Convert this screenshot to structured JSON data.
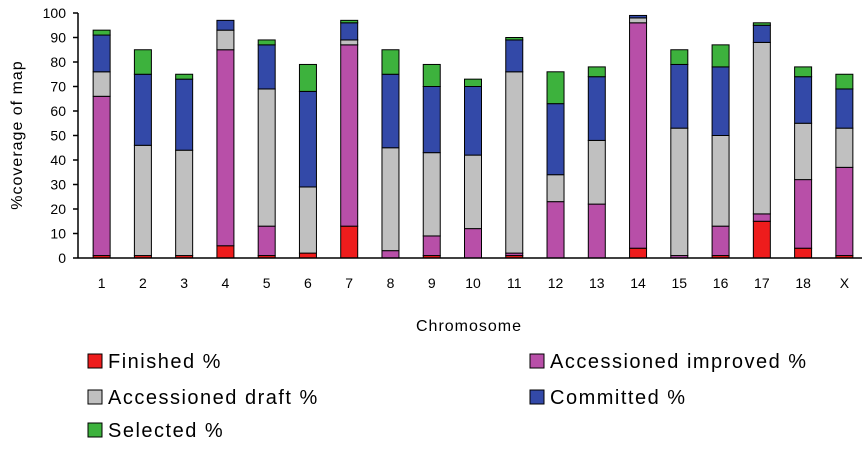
{
  "chart_data": {
    "type": "bar",
    "stacked": true,
    "title": "",
    "xlabel": "Chromosome",
    "ylabel": "%coverage of map",
    "ylim": [
      0,
      100
    ],
    "yticks": [
      0,
      10,
      20,
      30,
      40,
      50,
      60,
      70,
      80,
      90,
      100
    ],
    "grid": false,
    "legend_position": "bottom",
    "categories": [
      "1",
      "2",
      "3",
      "4",
      "5",
      "6",
      "7",
      "8",
      "9",
      "10",
      "11",
      "12",
      "13",
      "14",
      "15",
      "16",
      "17",
      "18",
      "X"
    ],
    "series": [
      {
        "name": "Finished %",
        "color": "#ee1c1c",
        "values": [
          1,
          1,
          1,
          5,
          1,
          2,
          13,
          0,
          1,
          0,
          1,
          0,
          0,
          4,
          0,
          1,
          15,
          4,
          1
        ]
      },
      {
        "name": "Accessioned improved %",
        "color": "#b84fa8",
        "values": [
          65,
          0,
          0,
          80,
          12,
          0,
          74,
          3,
          8,
          12,
          1,
          23,
          22,
          92,
          1,
          12,
          3,
          28,
          36
        ]
      },
      {
        "name": "Accessioned draft %",
        "color": "#c0c0c0",
        "values": [
          10,
          45,
          43,
          8,
          56,
          27,
          2,
          42,
          34,
          30,
          74,
          11,
          26,
          2,
          52,
          37,
          70,
          23,
          16
        ]
      },
      {
        "name": "Committed %",
        "color": "#3349a8",
        "values": [
          15,
          29,
          29,
          4,
          18,
          39,
          7,
          30,
          27,
          28,
          13,
          29,
          26,
          1,
          26,
          28,
          7,
          19,
          16
        ]
      },
      {
        "name": "Selected %",
        "color": "#3db23d",
        "values": [
          2,
          10,
          2,
          0,
          2,
          11,
          1,
          10,
          9,
          3,
          1,
          13,
          4,
          0,
          6,
          9,
          1,
          4,
          6
        ]
      }
    ]
  }
}
